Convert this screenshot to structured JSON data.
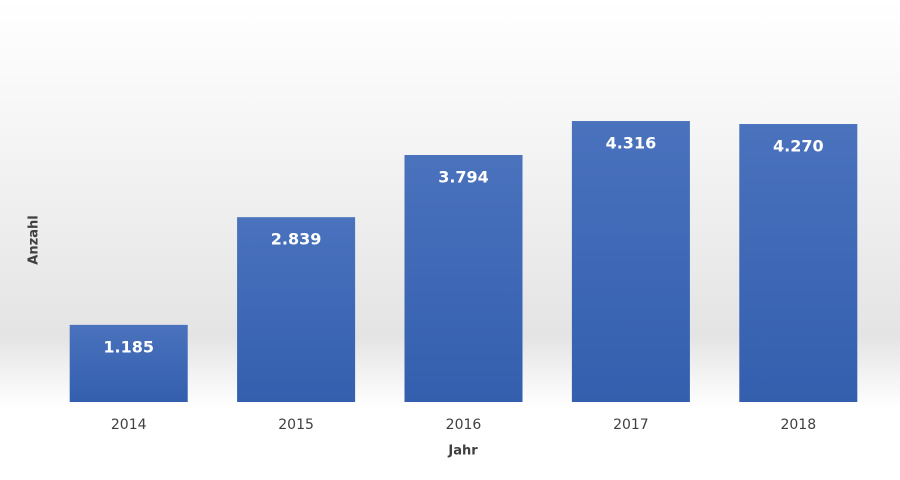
{
  "chart_data": {
    "type": "bar",
    "x_label": "Jahr",
    "y_label": "Anzahl",
    "categories": [
      "2014",
      "2015",
      "2016",
      "2017",
      "2018"
    ],
    "values": [
      1185,
      2839,
      3794,
      4316,
      4270
    ],
    "value_labels": [
      "1.185",
      "2.839",
      "3.794",
      "4.316",
      "4.270"
    ],
    "color": "#4169b5",
    "ylim": [
      0,
      5000
    ]
  }
}
